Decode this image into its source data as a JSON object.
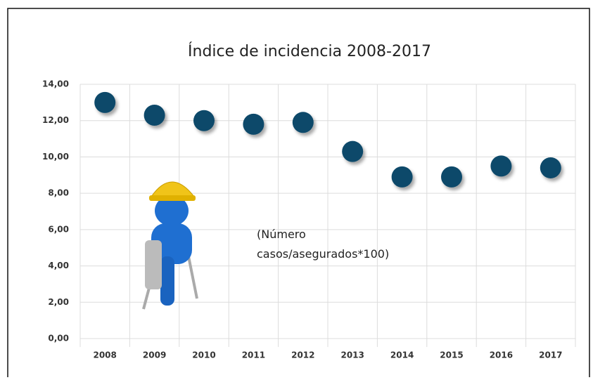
{
  "chart_data": {
    "type": "scatter",
    "title": "Índice de incidencia 2008-2017",
    "annotation": [
      "(Número",
      "casos/asegurados*100)"
    ],
    "categories": [
      "2008",
      "2009",
      "2010",
      "2011",
      "2012",
      "2013",
      "2014",
      "2015",
      "2016",
      "2017"
    ],
    "values": [
      13.0,
      12.3,
      12.0,
      11.8,
      11.9,
      10.3,
      8.9,
      8.9,
      9.5,
      9.4
    ],
    "color": "#0f4a6a",
    "ylim": [
      0,
      14
    ],
    "yticks": [
      {
        "value": 0,
        "label": "0,00"
      },
      {
        "value": 2,
        "label": "2,00"
      },
      {
        "value": 4,
        "label": "4,00"
      },
      {
        "value": 6,
        "label": "6,00"
      },
      {
        "value": 8,
        "label": "8,00"
      },
      {
        "value": 10,
        "label": "10,00"
      },
      {
        "value": 12,
        "label": "12,00"
      },
      {
        "value": 14,
        "label": "14,00"
      }
    ],
    "grid": true
  }
}
